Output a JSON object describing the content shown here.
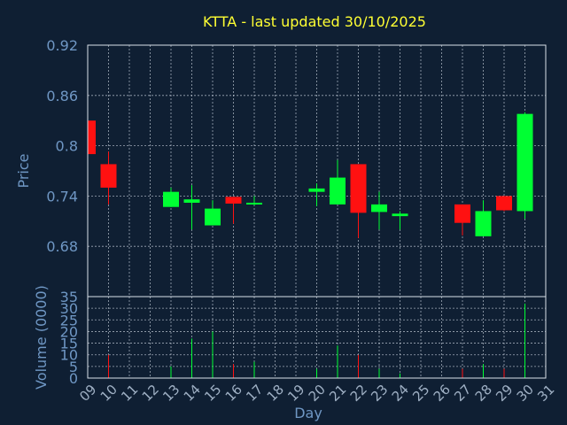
{
  "chart_data": {
    "type": "candlestick",
    "title": "KTTA - last updated 30/10/2025",
    "xlabel": "Day",
    "ylabel_price": "Price",
    "ylabel_volume": "Volume (0000)",
    "x_ticks": [
      "09",
      "10",
      "11",
      "12",
      "13",
      "14",
      "15",
      "16",
      "17",
      "18",
      "19",
      "20",
      "21",
      "22",
      "23",
      "24",
      "25",
      "26",
      "27",
      "28",
      "29",
      "30",
      "31"
    ],
    "price_ylim": [
      0.62,
      0.92
    ],
    "price_ticks": [
      "0.68",
      "0.74",
      "0.8",
      "0.86",
      "0.92"
    ],
    "volume_ylim": [
      0,
      35
    ],
    "volume_ticks": [
      "0",
      "5",
      "10",
      "15",
      "20",
      "25",
      "30",
      "35"
    ],
    "grid": true,
    "colors": {
      "up": "#00ff33",
      "down": "#ff1111",
      "background": "#0f1f33",
      "axis_text": "#6f97c4",
      "title": "#ffff33"
    },
    "candles": [
      {
        "day": 9,
        "open": 0.83,
        "high": 0.83,
        "low": 0.79,
        "close": 0.79,
        "volume": 0
      },
      {
        "day": 10,
        "open": 0.778,
        "high": 0.793,
        "low": 0.73,
        "close": 0.75,
        "volume": 10
      },
      {
        "day": 13,
        "open": 0.727,
        "high": 0.75,
        "low": 0.727,
        "close": 0.745,
        "volume": 5
      },
      {
        "day": 14,
        "open": 0.732,
        "high": 0.753,
        "low": 0.7,
        "close": 0.736,
        "volume": 17
      },
      {
        "day": 15,
        "open": 0.705,
        "high": 0.735,
        "low": 0.705,
        "close": 0.725,
        "volume": 20
      },
      {
        "day": 16,
        "open": 0.739,
        "high": 0.739,
        "low": 0.707,
        "close": 0.731,
        "volume": 6
      },
      {
        "day": 17,
        "open": 0.73,
        "high": 0.74,
        "low": 0.729,
        "close": 0.732,
        "volume": 7
      },
      {
        "day": 20,
        "open": 0.745,
        "high": 0.755,
        "low": 0.728,
        "close": 0.749,
        "volume": 4
      },
      {
        "day": 21,
        "open": 0.73,
        "high": 0.783,
        "low": 0.73,
        "close": 0.762,
        "volume": 14
      },
      {
        "day": 22,
        "open": 0.778,
        "high": 0.778,
        "low": 0.69,
        "close": 0.72,
        "volume": 10
      },
      {
        "day": 23,
        "open": 0.721,
        "high": 0.745,
        "low": 0.7,
        "close": 0.73,
        "volume": 4
      },
      {
        "day": 24,
        "open": 0.716,
        "high": 0.722,
        "low": 0.7,
        "close": 0.719,
        "volume": 2
      },
      {
        "day": 27,
        "open": 0.73,
        "high": 0.73,
        "low": 0.693,
        "close": 0.708,
        "volume": 4
      },
      {
        "day": 28,
        "open": 0.692,
        "high": 0.735,
        "low": 0.692,
        "close": 0.722,
        "volume": 6
      },
      {
        "day": 29,
        "open": 0.74,
        "high": 0.74,
        "low": 0.722,
        "close": 0.723,
        "volume": 4
      },
      {
        "day": 30,
        "open": 0.722,
        "high": 0.84,
        "low": 0.713,
        "close": 0.838,
        "volume": 32
      }
    ]
  }
}
